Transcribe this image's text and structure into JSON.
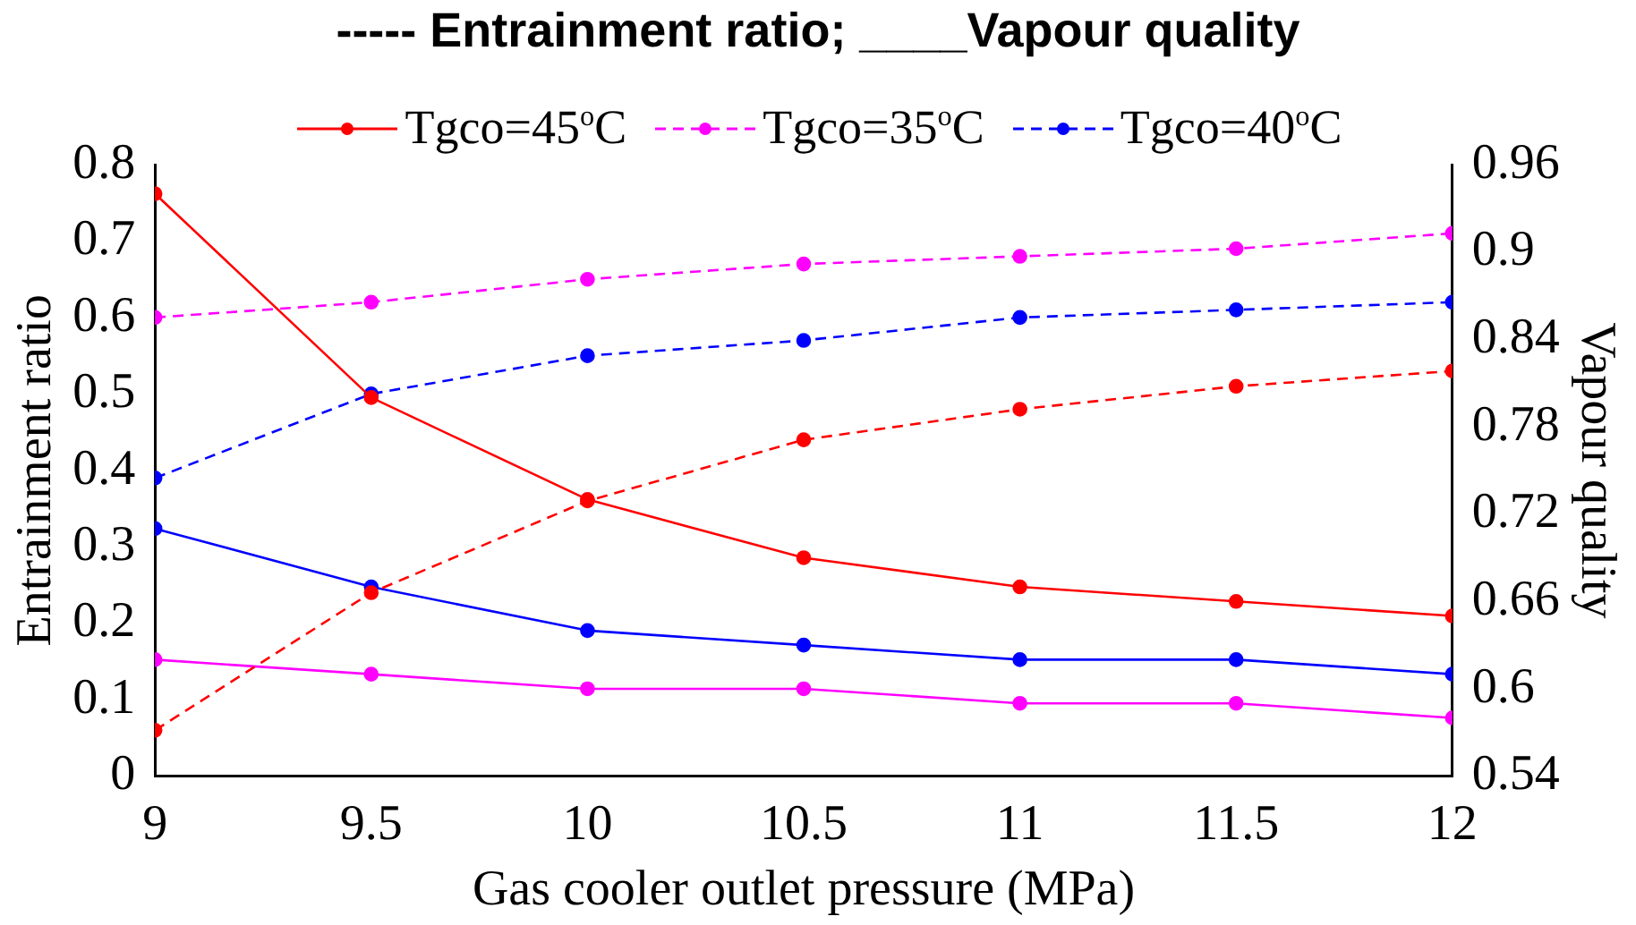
{
  "chart_data": {
    "type": "line",
    "title": "----- Entrainment ratio; ____Vapour quality",
    "xlabel": "Gas cooler outlet pressure (MPa)",
    "ylabel": "Entrainment ratio",
    "y2label": "Vapour quality",
    "x": [
      9,
      9.5,
      10,
      10.5,
      11,
      11.5,
      12
    ],
    "xlim": [
      9,
      12
    ],
    "xticks": [
      9,
      9.5,
      10,
      10.5,
      11,
      11.5,
      12
    ],
    "ylim": [
      0,
      0.8
    ],
    "yticks": [
      0,
      0.1,
      0.2,
      0.3,
      0.4,
      0.5,
      0.6,
      0.7,
      0.8
    ],
    "y2lim": [
      0.54,
      0.96
    ],
    "y2ticks": [
      0.54,
      0.6,
      0.66,
      0.72,
      0.78,
      0.84,
      0.9,
      0.96
    ],
    "marker": "circle",
    "grid": false,
    "legend": "top",
    "series": [
      {
        "name": "Tgco=45$^{o}$C",
        "color": "#ff0000",
        "axis": "y2",
        "line_style": "solid",
        "values": [
          0.94,
          0.8,
          0.73,
          0.69,
          0.67,
          0.66,
          0.65
        ]
      },
      {
        "name": "Tgco=35$^{o}$C",
        "color": "#ff00ff",
        "axis": "y",
        "line_style": "dashed",
        "values": [
          0.6,
          0.62,
          0.65,
          0.67,
          0.68,
          0.69,
          0.71
        ]
      },
      {
        "name": "Tgco=40$^{o}$C",
        "color": "#0000ff",
        "axis": "y",
        "line_style": "dashed",
        "values": [
          0.39,
          0.5,
          0.55,
          0.57,
          0.6,
          0.61,
          0.62
        ]
      },
      {
        "color": "#ff0000",
        "axis": "y",
        "line_style": "dashed",
        "values": [
          0.06,
          0.24,
          0.36,
          0.44,
          0.48,
          0.51,
          0.53
        ]
      },
      {
        "color": "#ff00ff",
        "axis": "y2",
        "line_style": "solid",
        "values": [
          0.62,
          0.61,
          0.6,
          0.6,
          0.59,
          0.59,
          0.58
        ]
      },
      {
        "color": "#0000ff",
        "axis": "y2",
        "line_style": "solid",
        "values": [
          0.71,
          0.67,
          0.64,
          0.63,
          0.62,
          0.62,
          0.61
        ]
      }
    ]
  }
}
